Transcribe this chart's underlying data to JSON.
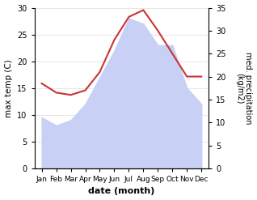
{
  "months": [
    "Jan",
    "Feb",
    "Mar",
    "Apr",
    "May",
    "Jun",
    "Jul",
    "Aug",
    "Sep",
    "Oct",
    "Nov",
    "Dec"
  ],
  "temperature": [
    9.5,
    8.0,
    9.0,
    12.0,
    17.0,
    22.0,
    28.0,
    27.0,
    23.0,
    23.0,
    15.0,
    12.0
  ],
  "precipitation": [
    18.5,
    16.5,
    16.0,
    17.0,
    21.0,
    28.0,
    33.0,
    34.5,
    30.0,
    25.0,
    20.0,
    20.0
  ],
  "precip_color": "#cc3333",
  "temp_fill_color": "#c8d0f5",
  "temp_ylim": [
    0,
    30
  ],
  "precip_ylim": [
    0,
    35
  ],
  "temp_yticks": [
    0,
    5,
    10,
    15,
    20,
    25,
    30
  ],
  "precip_yticks": [
    0,
    5,
    10,
    15,
    20,
    25,
    30,
    35
  ],
  "xlabel": "date (month)",
  "ylabel_left": "max temp (C)",
  "ylabel_right": "med. precipitation\n(kg/m2)",
  "bg_color": "#ffffff",
  "grid_color": "#dddddd"
}
